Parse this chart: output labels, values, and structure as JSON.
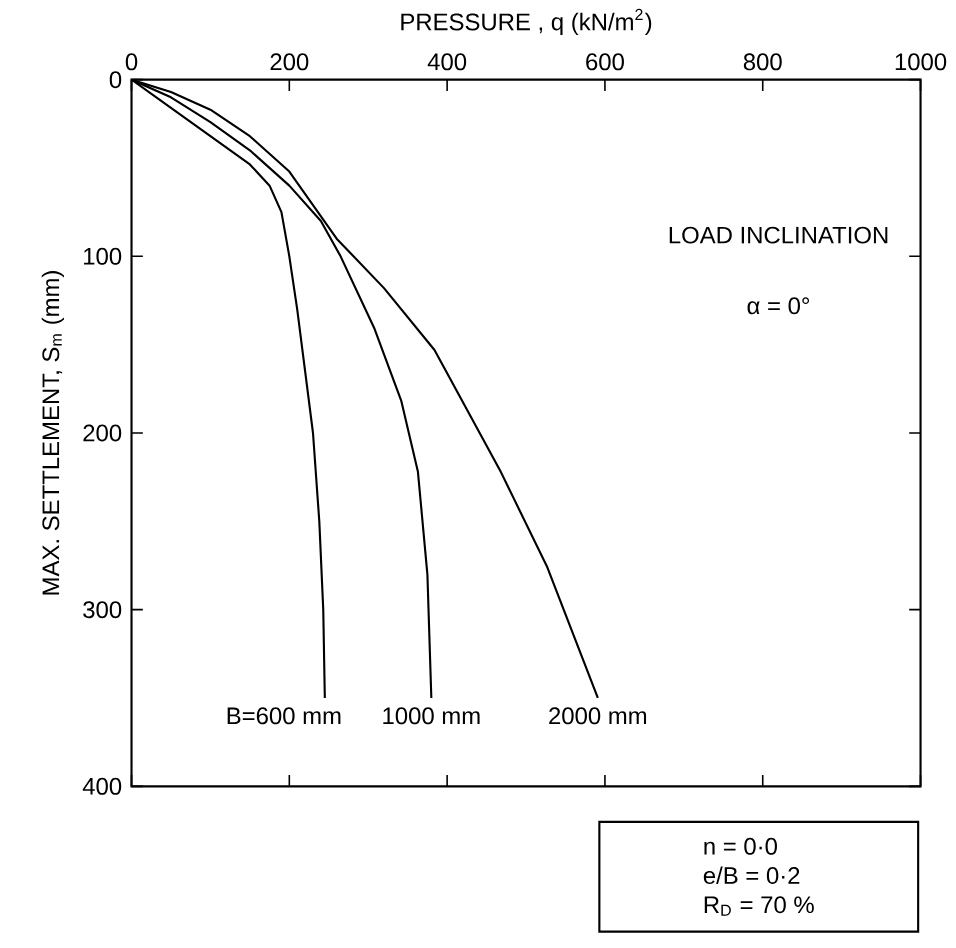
{
  "chart_data": {
    "type": "line",
    "xlabel": "PRESSURE , q (kN/m$^{2}$)",
    "ylabel": "MAX. SETTLEMENT, S$_{m}$ (mm)",
    "xlim": [
      0,
      1000
    ],
    "ylim": [
      400,
      0
    ],
    "xticks": [
      0,
      200,
      400,
      600,
      800,
      1000
    ],
    "yticks": [
      0,
      100,
      200,
      300,
      400
    ],
    "grid": false,
    "legend": false,
    "marker": "none",
    "line_style": "solid",
    "annotations": [
      "LOAD INCLINATION",
      "α = 0°",
      "n = 0·0",
      "e/B = 0·2",
      "R$_{D}$ = 70 %"
    ],
    "series": [
      {
        "name": "B=600 mm",
        "color": "#000000",
        "x": [
          0,
          50,
          100,
          150,
          175,
          190,
          200,
          210,
          220,
          230,
          238,
          243,
          245
        ],
        "values": [
          0,
          16,
          32,
          48,
          60,
          75,
          100,
          130,
          165,
          200,
          250,
          300,
          350
        ]
      },
      {
        "name": "1000 mm",
        "color": "#000000",
        "x": [
          0,
          50,
          100,
          150,
          200,
          240,
          265,
          308,
          342,
          363,
          375,
          380
        ],
        "values": [
          0,
          10,
          24,
          40,
          60,
          80,
          100,
          141,
          182,
          222,
          280,
          350
        ]
      },
      {
        "name": "2000 mm",
        "color": "#000000",
        "x": [
          0,
          50,
          100,
          150,
          200,
          260,
          320,
          384,
          468,
          527,
          591
        ],
        "values": [
          0,
          7,
          17,
          32,
          52,
          90,
          118,
          153,
          222,
          276,
          350
        ]
      }
    ]
  }
}
